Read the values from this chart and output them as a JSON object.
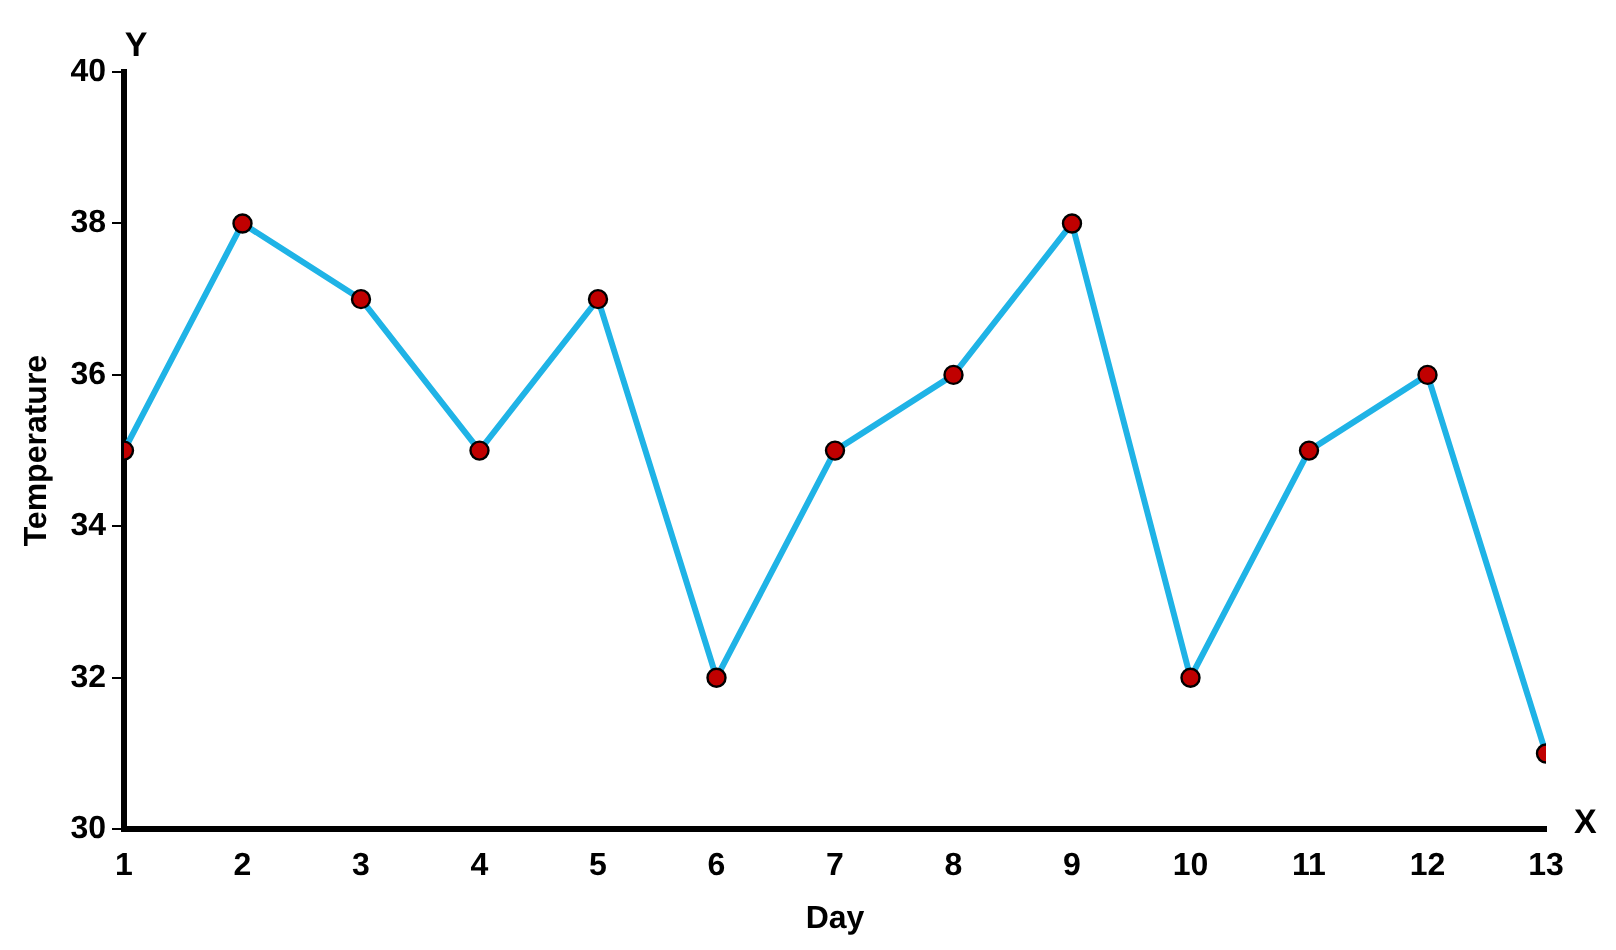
{
  "chart_data": {
    "type": "line",
    "xlabel": "Day",
    "ylabel": "Temperature",
    "x": [
      1,
      2,
      3,
      4,
      5,
      6,
      7,
      8,
      9,
      10,
      11,
      12,
      13
    ],
    "series": [
      {
        "color": "#1fb3e6",
        "values": [
          35,
          38,
          37,
          35,
          37,
          32,
          35,
          36,
          38,
          32,
          35,
          36,
          31
        ]
      }
    ],
    "xlim": [
      1,
      13
    ],
    "xticks": [
      1,
      2,
      3,
      4,
      5,
      6,
      7,
      8,
      9,
      10,
      11,
      12,
      13
    ],
    "ylim": [
      30,
      40
    ],
    "yticks": [
      30,
      32,
      34,
      36,
      38,
      40
    ],
    "grid": false,
    "legend": false,
    "marker": "circle",
    "line_style": "solid",
    "annotations": [
      "Y",
      "X"
    ]
  }
}
